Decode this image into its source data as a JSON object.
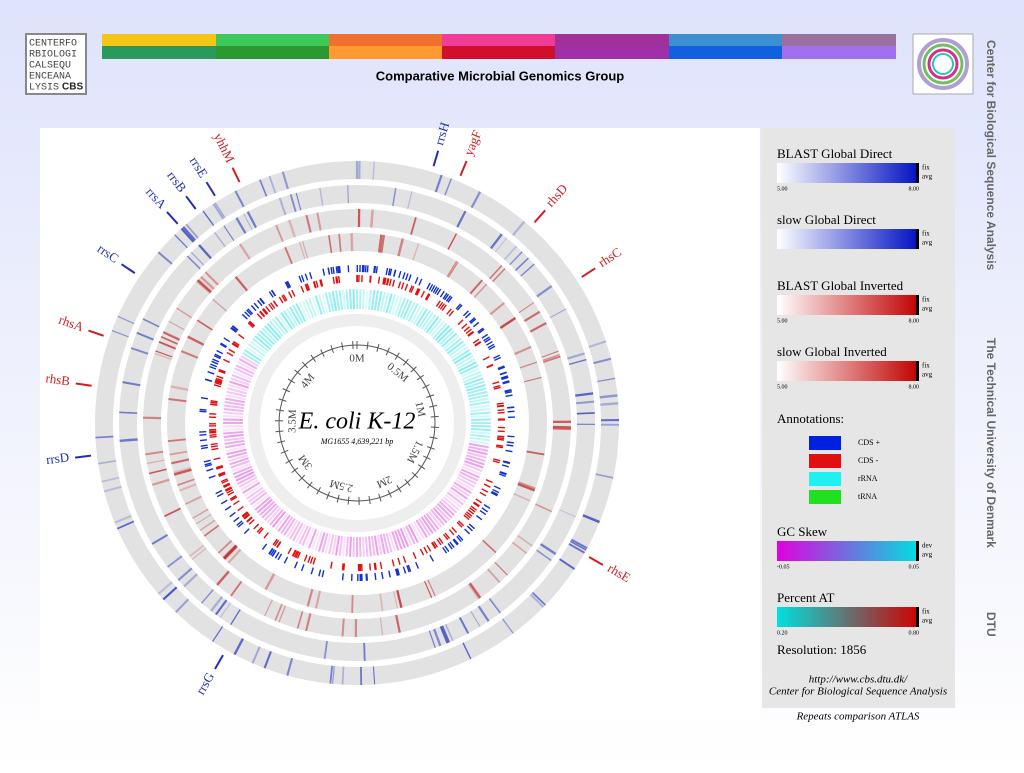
{
  "header": {
    "logo_lines": [
      "CENTERFO",
      "RBIOLOGI",
      "CALSEQU",
      "ENCEANA",
      "LYSIS"
    ],
    "logo_badge": "CBS",
    "title": "Comparative Microbial Genomics Group"
  },
  "side_text": [
    "Center for Biological Sequence Analysis",
    "The Technical University of Denmark",
    "DTU"
  ],
  "atlas": {
    "title": "E. coli K-12",
    "subtitle": "MG1655   4,639,221 bp",
    "scale_labels": [
      "0M",
      "0.5M",
      "1M",
      "1.5M",
      "2M",
      "2.5M",
      "3M",
      "3.5M",
      "4M"
    ],
    "genes": [
      {
        "name": "rrsH",
        "color": "#2030b0"
      },
      {
        "name": "yagF",
        "color": "#d02020"
      },
      {
        "name": "rhsD",
        "color": "#d02020"
      },
      {
        "name": "rhsC",
        "color": "#d02020"
      },
      {
        "name": "rhsE",
        "color": "#d02020"
      },
      {
        "name": "rrsG",
        "color": "#2030b0"
      },
      {
        "name": "rrsD",
        "color": "#2030b0"
      },
      {
        "name": "rhsB",
        "color": "#d02020"
      },
      {
        "name": "rhsA",
        "color": "#d02020"
      },
      {
        "name": "rrsC",
        "color": "#2030b0"
      },
      {
        "name": "rrsA",
        "color": "#2030b0"
      },
      {
        "name": "rrsB",
        "color": "#2030b0"
      },
      {
        "name": "rrsE",
        "color": "#2030b0"
      },
      {
        "name": "yhhM",
        "color": "#d02020"
      }
    ]
  },
  "legend": {
    "gradients": [
      {
        "title": "BLAST Global Direct",
        "min": "5.00",
        "max": "8.00",
        "tag1": "fix",
        "tag2": "avg",
        "from": "#ffffff",
        "to": "#0010c0"
      },
      {
        "title": "slow Global Direct",
        "min": "",
        "max": "",
        "tag1": "fix",
        "tag2": "avg",
        "from": "#ffffff",
        "to": "#0010c0"
      },
      {
        "title": "BLAST Global Inverted",
        "min": "5.00",
        "max": "8.00",
        "tag1": "fix",
        "tag2": "avg",
        "from": "#ffffff",
        "to": "#c00000"
      },
      {
        "title": "slow Global Inverted",
        "min": "5.00",
        "max": "8.00",
        "tag1": "fix",
        "tag2": "avg",
        "from": "#ffffff",
        "to": "#c00000"
      }
    ],
    "annotations_title": "Annotations:",
    "annotations": [
      {
        "label": "CDS +",
        "color": "#0020e0"
      },
      {
        "label": "CDS -",
        "color": "#e01010"
      },
      {
        "label": "rRNA",
        "color": "#20f0f0"
      },
      {
        "label": "tRNA",
        "color": "#20e020"
      }
    ],
    "gc_skew": {
      "title": "GC Skew",
      "min": "-0.05",
      "max": "0.05",
      "tag1": "dev",
      "tag2": "avg",
      "from": "#e000e0",
      "to": "#00e0e0"
    },
    "percent_at": {
      "title": "Percent AT",
      "min": "0.20",
      "max": "0.80",
      "tag1": "fix",
      "tag2": "avg",
      "from": "#00e0e0",
      "to": "#d00000"
    },
    "resolution": "Resolution: 1856",
    "url": "http://www.cbs.dtu.dk/",
    "org": "Center for Biological Sequence Analysis"
  },
  "caption": "Repeats comparison ATLAS"
}
